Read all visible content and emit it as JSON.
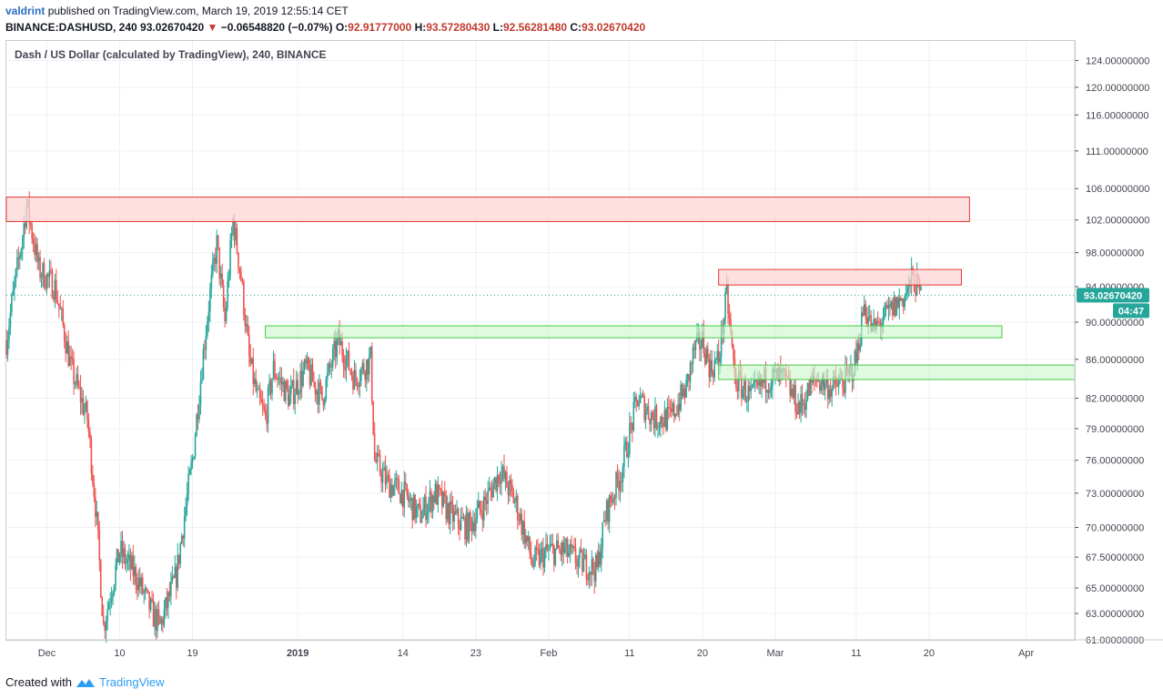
{
  "header": {
    "author": "valdrint",
    "published_text": "published on TradingView.com, March 19, 2019 12:55:14 CET"
  },
  "ohlc": {
    "symbol": "BINANCE:DASHUSD, 240",
    "last": "93.02670420",
    "change_arrow": "▼",
    "change": "−0.06548820 (−0.07%)",
    "o_label": "O:",
    "o_value": "92.91777000",
    "h_label": "H:",
    "h_value": "93.57280430",
    "l_label": "L:",
    "l_value": "92.56281480",
    "c_label": "C:",
    "c_value": "93.02670420"
  },
  "footer": {
    "created_with": "Created with",
    "brand": "TradingView"
  },
  "colors": {
    "up": "#26a69a",
    "down": "#ef5350",
    "resistance_fill": "#ffd6d6",
    "resistance_stroke": "#e53935",
    "support_fill": "#ccf7cc",
    "support_stroke": "#43c843",
    "price_tag": "#26a69a"
  },
  "chart_data": {
    "type": "candlestick",
    "title": "Dash / US Dollar (calculated by TradingView), 240, BINANCE",
    "y_scale": "log",
    "ylim": [
      61,
      127
    ],
    "y_ticks": [
      "124.00000000",
      "120.00000000",
      "116.00000000",
      "111.00000000",
      "106.00000000",
      "102.00000000",
      "98.00000000",
      "94.00000000",
      "90.00000000",
      "86.00000000",
      "82.00000000",
      "79.00000000",
      "76.00000000",
      "73.00000000",
      "70.00000000",
      "67.50000000",
      "65.00000000",
      "63.00000000",
      "61.00000000"
    ],
    "x_range": [
      "2018-11-26",
      "2019-04-07"
    ],
    "x_ticks": [
      {
        "date": "2018-12-01",
        "label": "Dec"
      },
      {
        "date": "2018-12-10",
        "label": "10"
      },
      {
        "date": "2018-12-19",
        "label": "19"
      },
      {
        "date": "2019-01-01",
        "label": "2019"
      },
      {
        "date": "2019-01-14",
        "label": "14"
      },
      {
        "date": "2019-01-23",
        "label": "23"
      },
      {
        "date": "2019-02-01",
        "label": "Feb"
      },
      {
        "date": "2019-02-11",
        "label": "11"
      },
      {
        "date": "2019-02-20",
        "label": "20"
      },
      {
        "date": "2019-03-01",
        "label": "Mar"
      },
      {
        "date": "2019-03-11",
        "label": "11"
      },
      {
        "date": "2019-03-20",
        "label": "20"
      },
      {
        "date": "2019-04-01",
        "label": "Apr"
      }
    ],
    "last_price": "93.02670420",
    "countdown": "04:47",
    "price_path": [
      {
        "x": "2018-11-26",
        "y": 88
      },
      {
        "x": "2018-11-28",
        "y": 100
      },
      {
        "x": "2018-11-28T12:00",
        "y": 104
      },
      {
        "x": "2018-11-30",
        "y": 96
      },
      {
        "x": "2018-12-02",
        "y": 94
      },
      {
        "x": "2018-12-04",
        "y": 85
      },
      {
        "x": "2018-12-06",
        "y": 80
      },
      {
        "x": "2018-12-07",
        "y": 72
      },
      {
        "x": "2018-12-08",
        "y": 62
      },
      {
        "x": "2018-12-10",
        "y": 68
      },
      {
        "x": "2018-12-12",
        "y": 66
      },
      {
        "x": "2018-12-14",
        "y": 63
      },
      {
        "x": "2018-12-15",
        "y": 62
      },
      {
        "x": "2018-12-17",
        "y": 66
      },
      {
        "x": "2018-12-19",
        "y": 76
      },
      {
        "x": "2018-12-21",
        "y": 92
      },
      {
        "x": "2018-12-22",
        "y": 99
      },
      {
        "x": "2018-12-23",
        "y": 90
      },
      {
        "x": "2018-12-24",
        "y": 102
      },
      {
        "x": "2018-12-25",
        "y": 95
      },
      {
        "x": "2018-12-26",
        "y": 86
      },
      {
        "x": "2018-12-27",
        "y": 82
      },
      {
        "x": "2018-12-28",
        "y": 80
      },
      {
        "x": "2018-12-29",
        "y": 85
      },
      {
        "x": "2018-12-31",
        "y": 82
      },
      {
        "x": "2019-01-02",
        "y": 85
      },
      {
        "x": "2019-01-04",
        "y": 82
      },
      {
        "x": "2019-01-06",
        "y": 88
      },
      {
        "x": "2019-01-08",
        "y": 84
      },
      {
        "x": "2019-01-10",
        "y": 86
      },
      {
        "x": "2019-01-10T12:00",
        "y": 76
      },
      {
        "x": "2019-01-12",
        "y": 74
      },
      {
        "x": "2019-01-14",
        "y": 73
      },
      {
        "x": "2019-01-16",
        "y": 71
      },
      {
        "x": "2019-01-18",
        "y": 73
      },
      {
        "x": "2019-01-20",
        "y": 71
      },
      {
        "x": "2019-01-22",
        "y": 70
      },
      {
        "x": "2019-01-24",
        "y": 72
      },
      {
        "x": "2019-01-26",
        "y": 75
      },
      {
        "x": "2019-01-28",
        "y": 72
      },
      {
        "x": "2019-01-30",
        "y": 67
      },
      {
        "x": "2019-02-01",
        "y": 68
      },
      {
        "x": "2019-02-03",
        "y": 68
      },
      {
        "x": "2019-02-05",
        "y": 67
      },
      {
        "x": "2019-02-07",
        "y": 66.5
      },
      {
        "x": "2019-02-08",
        "y": 71
      },
      {
        "x": "2019-02-10",
        "y": 75
      },
      {
        "x": "2019-02-12",
        "y": 82
      },
      {
        "x": "2019-02-14",
        "y": 80
      },
      {
        "x": "2019-02-16",
        "y": 80
      },
      {
        "x": "2019-02-18",
        "y": 83
      },
      {
        "x": "2019-02-19",
        "y": 87
      },
      {
        "x": "2019-02-20",
        "y": 88
      },
      {
        "x": "2019-02-21",
        "y": 85
      },
      {
        "x": "2019-02-22",
        "y": 86
      },
      {
        "x": "2019-02-23",
        "y": 93
      },
      {
        "x": "2019-02-24",
        "y": 84
      },
      {
        "x": "2019-02-26",
        "y": 82
      },
      {
        "x": "2019-02-28",
        "y": 84
      },
      {
        "x": "2019-03-02",
        "y": 84
      },
      {
        "x": "2019-03-04",
        "y": 81
      },
      {
        "x": "2019-03-06",
        "y": 84
      },
      {
        "x": "2019-03-08",
        "y": 83
      },
      {
        "x": "2019-03-10",
        "y": 84
      },
      {
        "x": "2019-03-11",
        "y": 86
      },
      {
        "x": "2019-03-12",
        "y": 92
      },
      {
        "x": "2019-03-13",
        "y": 89
      },
      {
        "x": "2019-03-15",
        "y": 91
      },
      {
        "x": "2019-03-17",
        "y": 93
      },
      {
        "x": "2019-03-18",
        "y": 95
      },
      {
        "x": "2019-03-19",
        "y": 93
      }
    ],
    "zones": [
      {
        "kind": "resistance",
        "x0": "2018-11-26",
        "x1": "2019-03-25",
        "y0": 101.8,
        "y1": 104.9
      },
      {
        "kind": "resistance",
        "x0": "2019-02-22",
        "x1": "2019-03-24",
        "y0": 94.2,
        "y1": 96.0
      },
      {
        "kind": "support",
        "x0": "2018-12-28",
        "x1": "2019-03-29",
        "y0": 88.3,
        "y1": 89.6
      },
      {
        "kind": "support",
        "x0": "2019-02-22",
        "x1": "2019-04-07",
        "y0": 83.9,
        "y1": 85.4
      }
    ]
  }
}
